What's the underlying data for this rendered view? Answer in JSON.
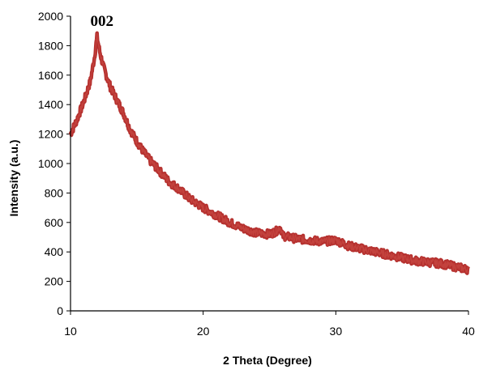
{
  "chart_data": {
    "type": "line",
    "title": "",
    "xlabel": "2 Theta (Degree)",
    "ylabel": "Intensity (a.u.)",
    "xlim": [
      10,
      40
    ],
    "ylim": [
      0,
      2000
    ],
    "x_ticks": [
      10,
      20,
      30,
      40
    ],
    "y_ticks": [
      0,
      200,
      400,
      600,
      800,
      1000,
      1200,
      1400,
      1600,
      1800,
      2000
    ],
    "grid": false,
    "legend": "none",
    "line_color": "#b5302e",
    "annotations": [
      {
        "text": "002",
        "x": 12.0,
        "y": 1880
      }
    ],
    "series": [
      {
        "x": [
          10.0,
          10.5,
          11.0,
          11.5,
          11.8,
          12.0,
          12.2,
          12.5,
          13.0,
          13.5,
          14.0,
          14.5,
          15.0,
          15.5,
          16.0,
          16.5,
          17.0,
          17.5,
          18.0,
          18.5,
          19.0,
          19.5,
          20.0,
          21.0,
          22.0,
          23.0,
          24.0,
          25.0,
          25.5,
          25.8,
          26.0,
          27.0,
          28.0,
          29.0,
          30.0,
          30.5,
          31.0,
          32.0,
          33.0,
          34.0,
          35.0,
          36.0,
          37.0,
          38.0,
          38.5,
          39.0,
          39.5,
          40.0
        ],
        "y": [
          1200,
          1300,
          1420,
          1560,
          1720,
          1860,
          1760,
          1650,
          1520,
          1430,
          1340,
          1230,
          1150,
          1080,
          1020,
          970,
          920,
          870,
          840,
          800,
          760,
          730,
          700,
          650,
          600,
          560,
          530,
          520,
          540,
          570,
          510,
          490,
          480,
          470,
          480,
          460,
          440,
          420,
          400,
          380,
          360,
          340,
          330,
          320,
          310,
          300,
          290,
          280
        ]
      }
    ]
  }
}
